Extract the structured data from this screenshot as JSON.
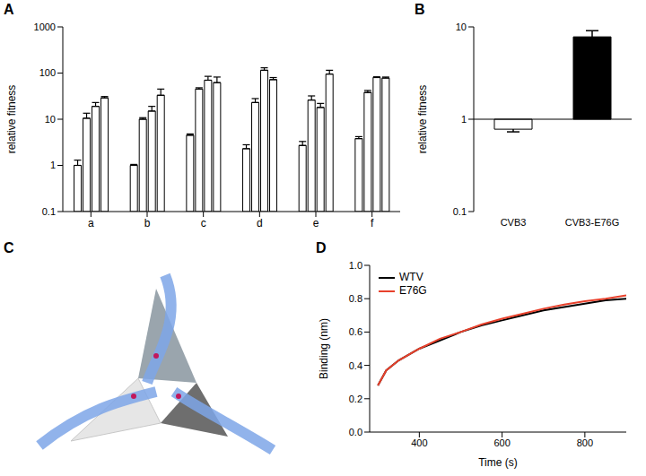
{
  "chart_data": [
    {
      "panel": "A",
      "type": "bar",
      "y_label": "relative fitness",
      "log": "y",
      "categories": [
        "a",
        "b",
        "c",
        "d",
        "e",
        "f"
      ],
      "series": [
        {
          "color": "#ffffff",
          "values": [
            1.0,
            1.0,
            4.5,
            2.3,
            2.7,
            3.8
          ],
          "errors": [
            0.3,
            0.05,
            0.3,
            0.5,
            0.6,
            0.4
          ]
        },
        {
          "color": "#ffffff",
          "values": [
            10.5,
            10,
            45,
            23,
            26,
            38
          ],
          "errors": [
            3,
            0.8,
            3,
            5,
            6,
            4
          ]
        },
        {
          "color": "#ffffff",
          "values": [
            19,
            15,
            70,
            115,
            18,
            80
          ],
          "errors": [
            4,
            4,
            15,
            15,
            4,
            3
          ]
        },
        {
          "color": "#ffffff",
          "values": [
            29,
            33,
            62,
            72,
            95,
            78
          ],
          "errors": [
            2,
            12,
            20,
            8,
            20,
            4
          ]
        }
      ],
      "ylim": [
        0.1,
        1000
      ],
      "yticks": [
        0.1,
        1,
        10,
        100,
        1000
      ]
    },
    {
      "panel": "B",
      "type": "bar",
      "y_label": "relative fitness",
      "log": "y",
      "categories": [
        "CVB3",
        "CVB3-E76G"
      ],
      "values": [
        0.78,
        7.8
      ],
      "errors": [
        0.05,
        1.3
      ],
      "base": 1,
      "colors": [
        "#ffffff",
        "#000000"
      ],
      "ylim": [
        0.1,
        10
      ],
      "yticks": [
        0.1,
        1,
        10
      ]
    },
    {
      "panel": "C",
      "type": "diagram"
    },
    {
      "panel": "D",
      "type": "line",
      "x_label": "Time (s)",
      "y_label": "Binding (nm)",
      "x": [
        300,
        320,
        350,
        400,
        450,
        500,
        550,
        600,
        650,
        700,
        750,
        800,
        850,
        900
      ],
      "series": [
        {
          "name": "WTV",
          "color": "#000000",
          "values": [
            0.28,
            0.37,
            0.43,
            0.5,
            0.55,
            0.6,
            0.64,
            0.67,
            0.7,
            0.73,
            0.75,
            0.77,
            0.79,
            0.8
          ]
        },
        {
          "name": "E76G",
          "color": "#e8412c",
          "values": [
            0.28,
            0.37,
            0.43,
            0.5,
            0.56,
            0.6,
            0.645,
            0.68,
            0.71,
            0.74,
            0.765,
            0.785,
            0.8,
            0.82
          ]
        }
      ],
      "xlim": [
        280,
        900
      ],
      "xticks": [
        400,
        600,
        800
      ],
      "ylim": [
        0,
        1
      ],
      "yticks": [
        {
          "value": 0,
          "label": "0.0"
        },
        {
          "value": 0.2,
          "label": "0.2"
        },
        {
          "value": 0.4,
          "label": "0.4"
        },
        {
          "value": 0.6,
          "label": "0.6"
        },
        {
          "value": 0.8,
          "label": "0.8"
        },
        {
          "value": 1,
          "label": "1.0"
        }
      ],
      "legend": "upper left"
    }
  ]
}
